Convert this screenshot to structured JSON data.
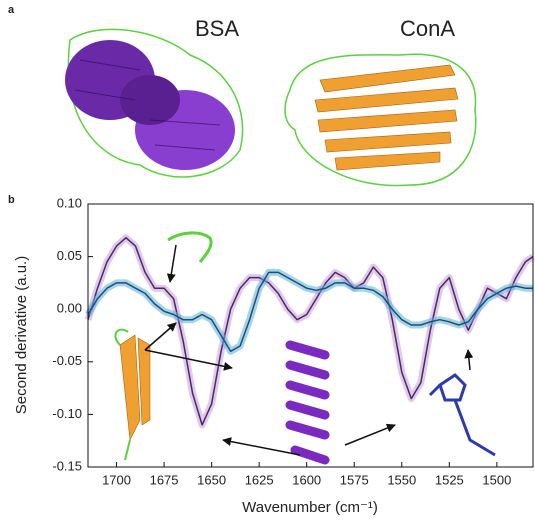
{
  "panel_a": {
    "label": "a",
    "structures": [
      "BSA",
      "ConA"
    ]
  },
  "panel_b_label": "b",
  "chart_data": {
    "type": "line",
    "x_label": "Wavenumber (cm⁻¹)",
    "y_label": "Second derivative (a.u.)",
    "x": [
      1715,
      1710,
      1705,
      1700,
      1695,
      1690,
      1685,
      1680,
      1675,
      1670,
      1665,
      1660,
      1655,
      1650,
      1645,
      1640,
      1635,
      1630,
      1625,
      1620,
      1615,
      1610,
      1605,
      1600,
      1595,
      1590,
      1585,
      1580,
      1575,
      1570,
      1565,
      1560,
      1555,
      1550,
      1545,
      1540,
      1535,
      1530,
      1525,
      1520,
      1515,
      1510,
      1505,
      1500,
      1495,
      1490,
      1485,
      1481
    ],
    "series": [
      {
        "color": "#4a2a5e",
        "band_color": "#c89be0",
        "values": [
          -0.01,
          0.02,
          0.045,
          0.06,
          0.068,
          0.06,
          0.035,
          0.02,
          0.02,
          0.01,
          -0.03,
          -0.08,
          -0.11,
          -0.09,
          -0.04,
          0.0,
          0.02,
          0.03,
          0.03,
          0.025,
          0.015,
          0.0,
          -0.01,
          -0.005,
          0.01,
          0.025,
          0.035,
          0.03,
          0.02,
          0.025,
          0.04,
          0.03,
          -0.01,
          -0.06,
          -0.085,
          -0.07,
          -0.02,
          0.02,
          0.03,
          0.0,
          -0.02,
          0.0,
          0.02,
          0.015,
          0.01,
          0.03,
          0.045,
          0.05
        ]
      },
      {
        "color": "#1f4f6e",
        "band_color": "#5aaee0",
        "values": [
          -0.005,
          0.01,
          0.02,
          0.025,
          0.025,
          0.02,
          0.015,
          0.005,
          -0.002,
          -0.005,
          -0.01,
          -0.01,
          -0.005,
          -0.01,
          -0.025,
          -0.04,
          -0.035,
          -0.01,
          0.02,
          0.035,
          0.035,
          0.03,
          0.025,
          0.02,
          0.018,
          0.02,
          0.025,
          0.025,
          0.02,
          0.02,
          0.018,
          0.012,
          0.0,
          -0.01,
          -0.015,
          -0.015,
          -0.012,
          -0.01,
          -0.012,
          -0.015,
          -0.012,
          0.0,
          0.01,
          0.015,
          0.02,
          0.022,
          0.02,
          0.02
        ]
      }
    ],
    "xlim": [
      1715,
      1481
    ],
    "xticks": [
      1700,
      1675,
      1650,
      1625,
      1600,
      1575,
      1550,
      1525,
      1500
    ],
    "ylim": [
      -0.15,
      0.1
    ],
    "yticks": [
      -0.15,
      {
        "value": -0.1,
        "label": "-0.10"
      },
      -0.05,
      {
        "value": 0,
        "label": "0.00"
      },
      0.05,
      {
        "value": 0.1,
        "label": "0.10"
      }
    ]
  }
}
